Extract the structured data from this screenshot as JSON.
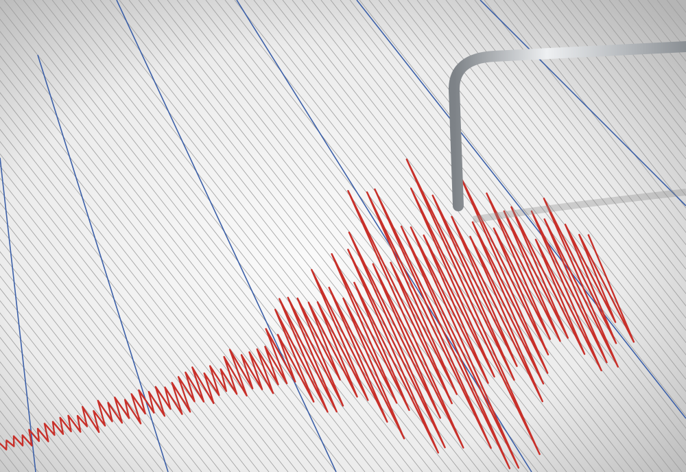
{
  "scene": {
    "subject": "seismograph",
    "colors": {
      "paper": "#f2f2f2",
      "shadow": "#9a9a9a",
      "grid_line": "#9c9c9c",
      "major_line": "#3b5fa8",
      "trace": "#c8302a",
      "stylus": "#b8bcc0"
    }
  }
}
